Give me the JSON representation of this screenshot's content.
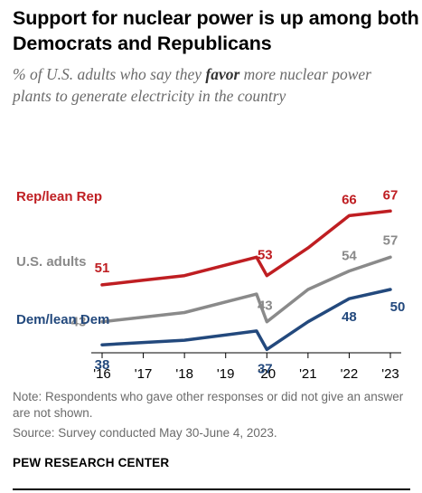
{
  "header": {
    "title": "Support for nuclear power is up among both Democrats and Republicans",
    "subtitle_pre": "% of U.S. adults who say they ",
    "subtitle_em": "favor",
    "subtitle_post": " more nuclear power plants to generate electricity in the country"
  },
  "footer": {
    "note": "Note: Respondents who gave other responses or did not give an answer are not shown.",
    "source": "Source: Survey conducted May 30-June 4, 2023.",
    "org": "PEW RESEARCH CENTER"
  },
  "colors": {
    "rep": "#bf1e22",
    "adults": "#8a8a8a",
    "dem": "#23497d"
  },
  "chart_data": {
    "type": "line",
    "x_ticks": [
      "'16",
      "'17",
      "'18",
      "'19",
      "'20",
      "'21",
      "'22",
      "'23"
    ],
    "x_tick_values": [
      2016,
      2017,
      2018,
      2019,
      2020,
      2021,
      2022,
      2023
    ],
    "xlim": [
      2016,
      2023
    ],
    "ylim": [
      30,
      72
    ],
    "grid": false,
    "legend": "inline labels on left",
    "series": [
      {
        "name": "Rep/lean Rep",
        "key": "rep",
        "x": [
          2016.0,
          2017.0,
          2018.0,
          2019.75,
          2020.0,
          2021.0,
          2022.0,
          2023.0
        ],
        "values": [
          51,
          52,
          53,
          57,
          53,
          59,
          66,
          67
        ],
        "labels": [
          {
            "idx": 0,
            "text": "51"
          },
          {
            "idx": 4,
            "text": "53"
          },
          {
            "idx": 6,
            "text": "66"
          },
          {
            "idx": 7,
            "text": "67"
          }
        ]
      },
      {
        "name": "U.S. adults",
        "key": "adults",
        "x": [
          2016.0,
          2017.0,
          2018.0,
          2019.75,
          2020.0,
          2021.0,
          2022.0,
          2023.0
        ],
        "values": [
          43,
          44,
          45,
          49,
          43,
          50,
          54,
          57
        ],
        "labels": [
          {
            "idx": 0,
            "text": "43"
          },
          {
            "idx": 4,
            "text": "43"
          },
          {
            "idx": 6,
            "text": "54"
          },
          {
            "idx": 7,
            "text": "57"
          }
        ]
      },
      {
        "name": "Dem/lean Dem",
        "key": "dem",
        "x": [
          2016.0,
          2017.0,
          2018.0,
          2019.75,
          2020.0,
          2021.0,
          2022.0,
          2023.0
        ],
        "values": [
          38,
          38.5,
          39,
          41,
          37,
          43,
          48,
          50
        ],
        "labels": [
          {
            "idx": 0,
            "text": "38"
          },
          {
            "idx": 4,
            "text": "37"
          },
          {
            "idx": 6,
            "text": "48"
          },
          {
            "idx": 7,
            "text": "50"
          }
        ]
      }
    ]
  }
}
